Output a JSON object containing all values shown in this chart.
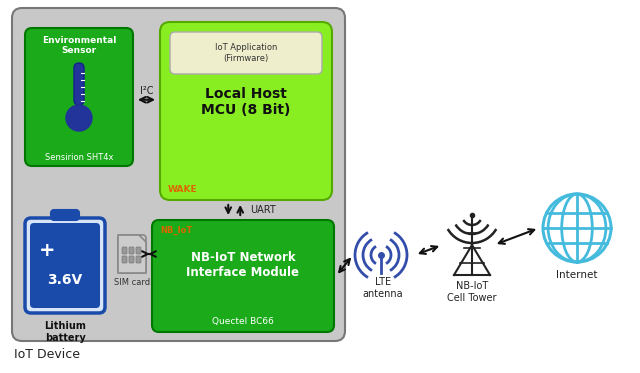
{
  "bg_color": "#c8c8c8",
  "white_bg": "#ffffff",
  "green_dark": "#1aaa1a",
  "green_light": "#88ee22",
  "blue_battery_fill": "#1a4aaa",
  "blue_battery_border": "#1a4aaa",
  "orange_label": "#dd6600",
  "cyan_globe": "#44bbdd",
  "arrow_color": "#111111",
  "title_bottom": "IoT Device",
  "sensor_title": "Environmental\nSensor",
  "sensor_subtitle": "Sensirion SHT4x",
  "mcu_app_label": "IoT Application\n(Firmware)",
  "mcu_title": "Local Host\nMCU (8 Bit)",
  "mcu_wake": "WAKE",
  "nb_label": "NB_IoT",
  "nb_title": "NB-IoT Network\nInterface Module",
  "nb_subtitle": "Quectel BC66",
  "i2c_label": "I²C",
  "uart_label": "UART",
  "lte_label": "LTE\nantenna",
  "tower_label": "NB-IoT\nCell Tower",
  "internet_label": "Internet",
  "sim_label": "SIM card",
  "lithium_label": "Lithium\nbattery"
}
